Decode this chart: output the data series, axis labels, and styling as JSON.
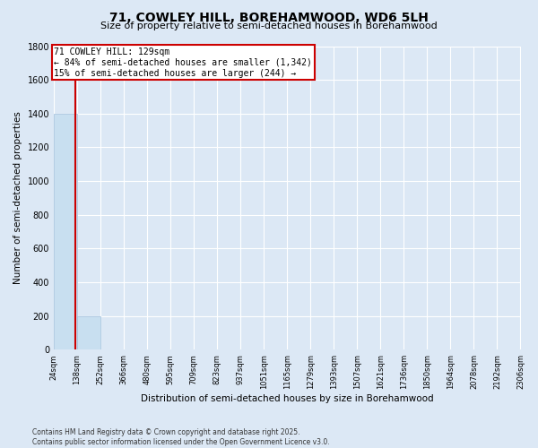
{
  "title": "71, COWLEY HILL, BOREHAMWOOD, WD6 5LH",
  "subtitle": "Size of property relative to semi-detached houses in Borehamwood",
  "xlabel": "Distribution of semi-detached houses by size in Borehamwood",
  "ylabel": "Number of semi-detached properties",
  "footnote": "Contains HM Land Registry data © Crown copyright and database right 2025.\nContains public sector information licensed under the Open Government Licence v3.0.",
  "annotation_title": "71 COWLEY HILL: 129sqm",
  "annotation_line1": "← 84% of semi-detached houses are smaller (1,342)",
  "annotation_line2": "15% of semi-detached houses are larger (244) →",
  "property_size": 129,
  "bin_edges": [
    24,
    138,
    252,
    366,
    480,
    595,
    709,
    823,
    937,
    1051,
    1165,
    1279,
    1393,
    1507,
    1621,
    1736,
    1850,
    1964,
    2078,
    2192,
    2306
  ],
  "bin_labels": [
    "24sqm",
    "138sqm",
    "252sqm",
    "366sqm",
    "480sqm",
    "595sqm",
    "709sqm",
    "823sqm",
    "937sqm",
    "1051sqm",
    "1165sqm",
    "1279sqm",
    "1393sqm",
    "1507sqm",
    "1621sqm",
    "1736sqm",
    "1850sqm",
    "1964sqm",
    "2078sqm",
    "2192sqm",
    "2306sqm"
  ],
  "bar_heights": [
    1400,
    200,
    0,
    0,
    0,
    0,
    0,
    0,
    0,
    0,
    0,
    0,
    0,
    0,
    0,
    0,
    0,
    0,
    0,
    0
  ],
  "bar_color": "#c8dff0",
  "bar_edge_color": "#a0c0dc",
  "vline_color": "#cc0000",
  "vline_x": 129,
  "ylim": [
    0,
    1800
  ],
  "annotation_box_color": "#cc0000",
  "annotation_text_color": "#000000",
  "background_color": "#dce8f5",
  "grid_color": "#ffffff"
}
